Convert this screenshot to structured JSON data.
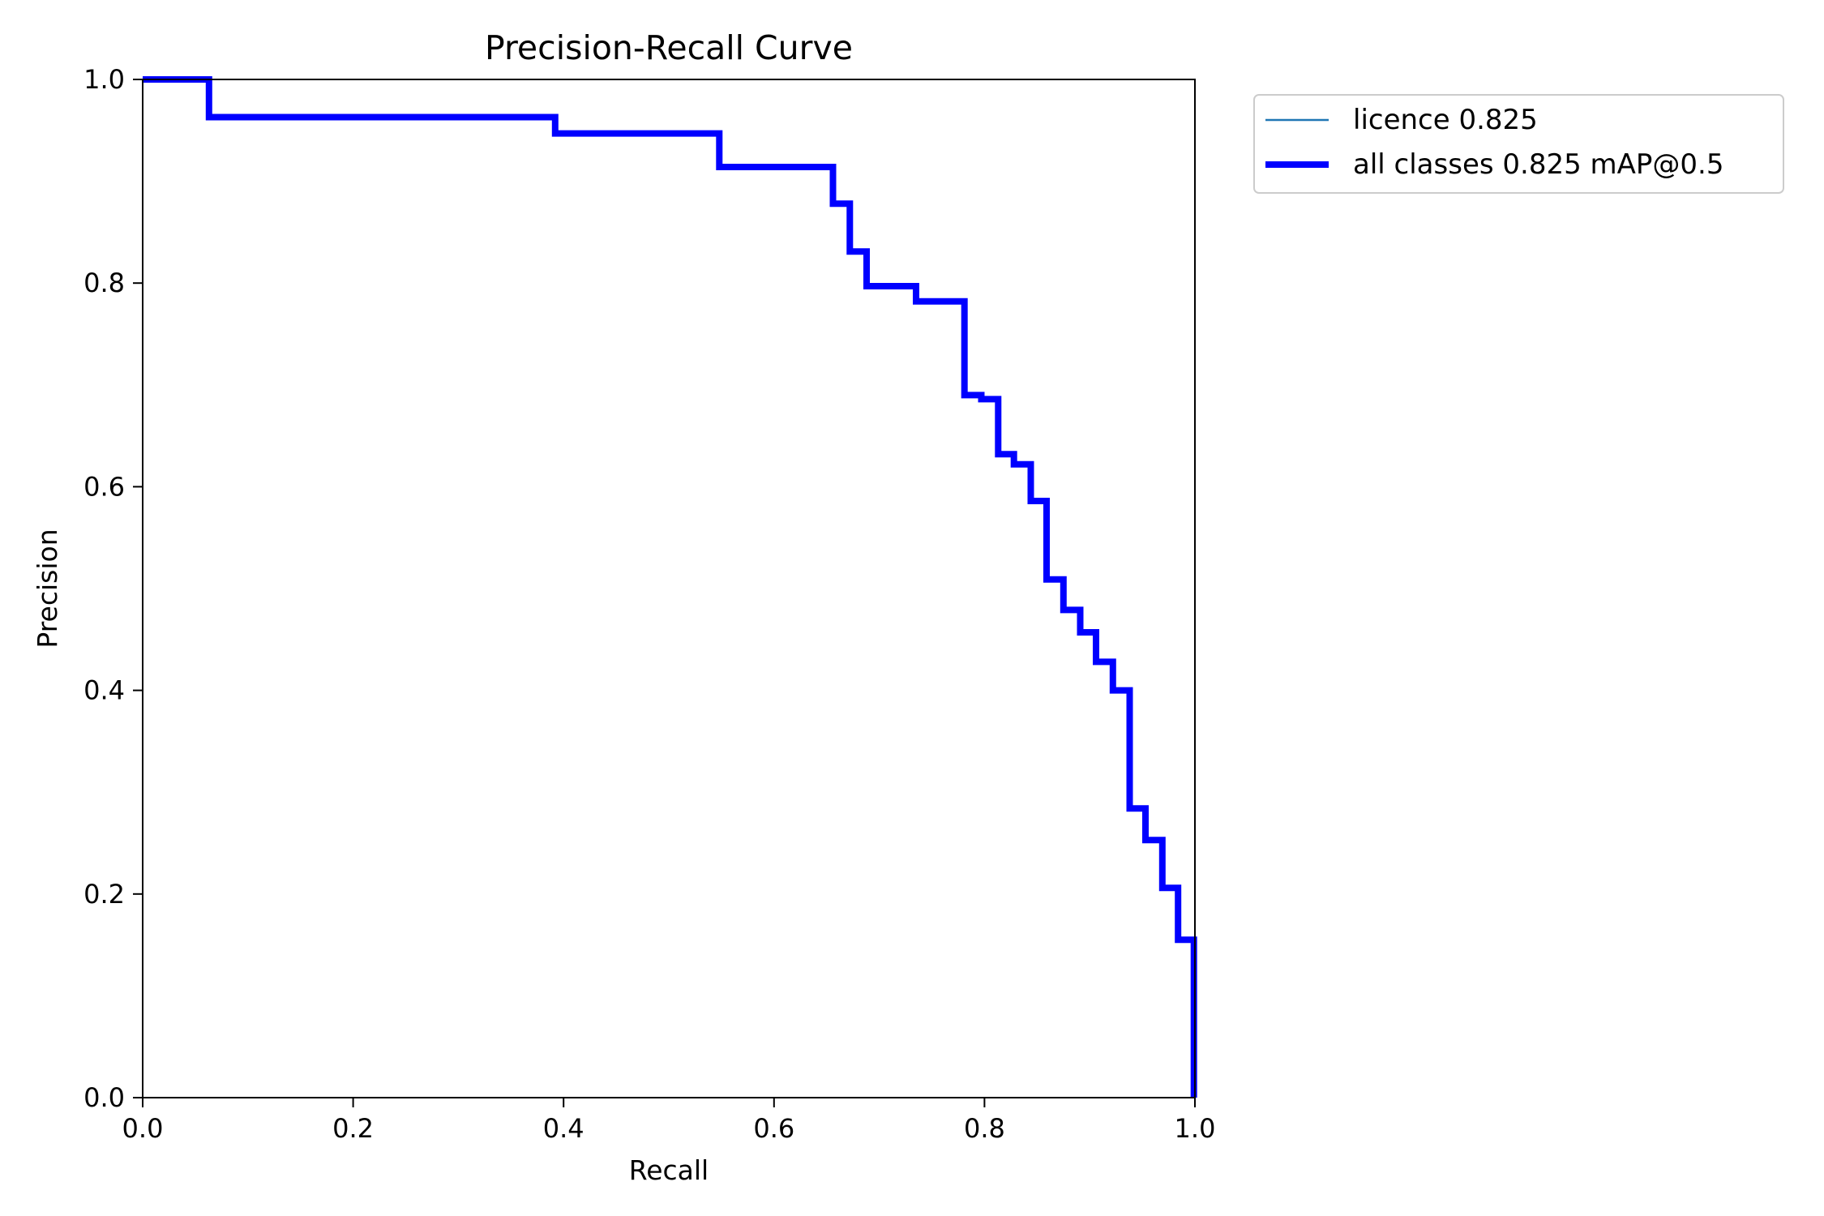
{
  "chart_data": {
    "type": "line",
    "title": "Precision-Recall Curve",
    "xlabel": "Recall",
    "ylabel": "Precision",
    "xlim": [
      0.0,
      1.0
    ],
    "ylim": [
      0.0,
      1.0
    ],
    "x_ticks": [
      "0.0",
      "0.2",
      "0.4",
      "0.6",
      "0.8",
      "1.0"
    ],
    "y_ticks": [
      "0.0",
      "0.2",
      "0.4",
      "0.6",
      "0.8",
      "1.0"
    ],
    "grid": false,
    "legend_position": "outside upper right",
    "series": [
      {
        "name": "licence 0.825",
        "color": "#1f77b4",
        "style": "thin",
        "points": []
      },
      {
        "name": "all classes 0.825 mAP@0.5",
        "color": "#0000ff",
        "style": "thick",
        "points": [
          [
            0.0,
            1.0
          ],
          [
            0.063,
            1.0
          ],
          [
            0.063,
            0.963
          ],
          [
            0.392,
            0.963
          ],
          [
            0.392,
            0.947
          ],
          [
            0.548,
            0.947
          ],
          [
            0.548,
            0.914
          ],
          [
            0.656,
            0.914
          ],
          [
            0.656,
            0.878
          ],
          [
            0.672,
            0.878
          ],
          [
            0.672,
            0.831
          ],
          [
            0.688,
            0.831
          ],
          [
            0.688,
            0.797
          ],
          [
            0.735,
            0.797
          ],
          [
            0.735,
            0.782
          ],
          [
            0.781,
            0.782
          ],
          [
            0.781,
            0.69
          ],
          [
            0.797,
            0.69
          ],
          [
            0.797,
            0.686
          ],
          [
            0.813,
            0.686
          ],
          [
            0.813,
            0.632
          ],
          [
            0.828,
            0.632
          ],
          [
            0.828,
            0.622
          ],
          [
            0.844,
            0.622
          ],
          [
            0.844,
            0.586
          ],
          [
            0.859,
            0.586
          ],
          [
            0.859,
            0.509
          ],
          [
            0.875,
            0.509
          ],
          [
            0.875,
            0.479
          ],
          [
            0.891,
            0.479
          ],
          [
            0.891,
            0.457
          ],
          [
            0.906,
            0.457
          ],
          [
            0.906,
            0.428
          ],
          [
            0.922,
            0.428
          ],
          [
            0.922,
            0.4
          ],
          [
            0.938,
            0.4
          ],
          [
            0.938,
            0.284
          ],
          [
            0.953,
            0.284
          ],
          [
            0.953,
            0.253
          ],
          [
            0.969,
            0.253
          ],
          [
            0.969,
            0.206
          ],
          [
            0.984,
            0.206
          ],
          [
            0.984,
            0.155
          ],
          [
            0.999,
            0.155
          ],
          [
            0.999,
            0.0
          ]
        ]
      }
    ]
  }
}
